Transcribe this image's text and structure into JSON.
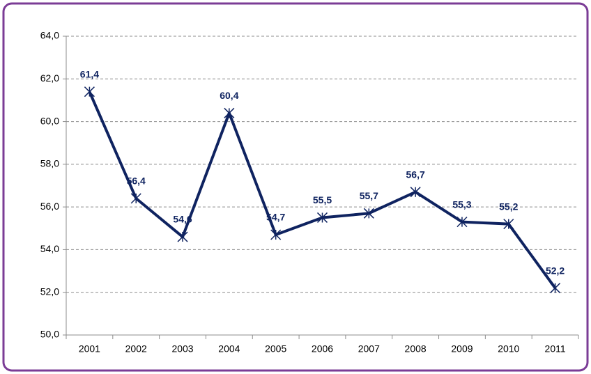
{
  "chart_data": {
    "type": "line",
    "categories": [
      "2001",
      "2002",
      "2003",
      "2004",
      "2005",
      "2006",
      "2007",
      "2008",
      "2009",
      "2010",
      "2011"
    ],
    "values": [
      61.4,
      56.4,
      54.6,
      60.4,
      54.7,
      55.5,
      55.7,
      56.7,
      55.3,
      55.2,
      52.2
    ],
    "value_labels": [
      "61,4",
      "56,4",
      "54,6",
      "60,4",
      "54,7",
      "55,5",
      "55,7",
      "56,7",
      "55,3",
      "55,2",
      "52,2"
    ],
    "color": "#0f2360",
    "ylim": [
      50,
      64
    ],
    "yticks": [
      {
        "value": 50,
        "label": "50,0"
      },
      {
        "value": 52,
        "label": "52,0"
      },
      {
        "value": 54,
        "label": "54,0"
      },
      {
        "value": 56,
        "label": "56,0"
      },
      {
        "value": 58,
        "label": "58,0"
      },
      {
        "value": 60,
        "label": "60,0"
      },
      {
        "value": 62,
        "label": "62,0"
      },
      {
        "value": 64,
        "label": "64,0"
      }
    ],
    "grid": true
  }
}
